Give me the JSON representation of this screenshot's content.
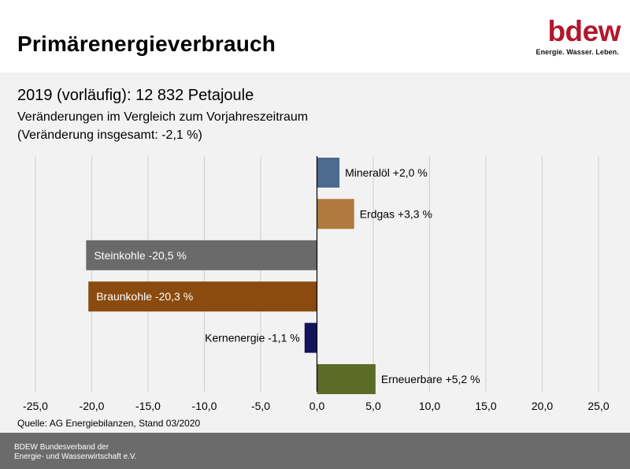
{
  "header": {
    "title": "Primärenergieverbrauch",
    "logo_text": "bdew",
    "logo_tagline": "Energie. Wasser. Leben."
  },
  "subtitle": {
    "line1": "2019 (vorläufig): 12 832 Petajoule",
    "line2": "Veränderungen im Vergleich zum Vorjahreszeitraum",
    "line3": "(Veränderung insgesamt: -2,1 %)"
  },
  "chart_data": {
    "type": "bar",
    "orientation": "horizontal",
    "categories": [
      "Mineralöl",
      "Erdgas",
      "Steinkohle",
      "Braunkohle",
      "Kernenergie",
      "Erneuerbare"
    ],
    "values": [
      2.0,
      3.3,
      -20.5,
      -20.3,
      -1.1,
      5.2
    ],
    "data_labels": [
      "Mineralöl +2,0 %",
      "Erdgas +3,3 %",
      "Steinkohle -20,5 %",
      "Braunkohle -20,3 %",
      "Kernenergie -1,1 %",
      "Erneuerbare +5,2 %"
    ],
    "colors": [
      "#4d6a8f",
      "#b07a3e",
      "#6a6a6a",
      "#8a4a10",
      "#14145a",
      "#5c6b26"
    ],
    "label_colors": [
      "#000000",
      "#000000",
      "#ffffff",
      "#ffffff",
      "#000000",
      "#000000"
    ],
    "xlim": [
      -25,
      25
    ],
    "ticks": [
      -25,
      -20,
      -15,
      -10,
      -5,
      0,
      5,
      10,
      15,
      20,
      25
    ],
    "tick_labels": [
      "-25,0",
      "-20,0",
      "-15,0",
      "-10,0",
      "-5,0",
      "0,0",
      "5,0",
      "10,0",
      "15,0",
      "20,0",
      "25,0"
    ],
    "grid": true,
    "xlabel": "",
    "ylabel": ""
  },
  "source": "Quelle: AG Energiebilanzen, Stand 03/2020",
  "footer": {
    "line1": "BDEW Bundesverband der",
    "line2": "Energie- und Wasserwirtschaft e.V."
  },
  "colors": {
    "brand": "#b2172b",
    "background": "#f2f2f2",
    "footer": "#6b6b6b"
  }
}
